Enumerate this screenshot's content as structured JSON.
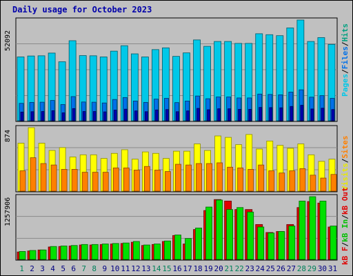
{
  "chart_data": {
    "type": "bar",
    "title": "Daily usage for October 2023",
    "days": [
      "1",
      "2",
      "3",
      "4",
      "5",
      "6",
      "7",
      "8",
      "9",
      "10",
      "11",
      "12",
      "13",
      "14",
      "15",
      "16",
      "17",
      "18",
      "19",
      "20",
      "21",
      "22",
      "23",
      "24",
      "25",
      "26",
      "27",
      "28",
      "29",
      "30",
      "31"
    ],
    "weekend_days": [
      "1",
      "7",
      "8",
      "14",
      "15",
      "21",
      "22",
      "28",
      "29"
    ],
    "grid": true,
    "panels": [
      {
        "id": "hits",
        "y_max_label": "52092",
        "y_max": 52092,
        "legend": [
          "Pages",
          "Files",
          "Hits"
        ],
        "series": [
          {
            "name": "Hits",
            "color": "#00c8e8",
            "values": [
              33000,
              33500,
              33600,
              35000,
              30500,
              41400,
              33700,
              33600,
              33000,
              36000,
              38800,
              34600,
              33000,
              36800,
              37700,
              33300,
              35100,
              41800,
              38500,
              41000,
              41000,
              40000,
              40000,
              45000,
              44500,
              44000,
              48000,
              52092,
              41000,
              43000,
              39500
            ]
          },
          {
            "name": "Files",
            "color": "#0070e8",
            "values": [
              9000,
              9500,
              9600,
              10500,
              8400,
              12500,
              9700,
              9600,
              9200,
              11000,
              12000,
              10200,
              9500,
              11200,
              11600,
              9400,
              10200,
              12800,
              11400,
              12300,
              12300,
              11800,
              11800,
              13800,
              13600,
              13400,
              14800,
              16000,
              12200,
              13000,
              11600
            ]
          },
          {
            "name": "Pages",
            "color": "#0000b0",
            "values": [
              4500,
              4700,
              4800,
              5200,
              4100,
              6300,
              4800,
              4800,
              4600,
              5500,
              6000,
              5100,
              4700,
              5600,
              5800,
              4700,
              5100,
              6400,
              5700,
              6200,
              6200,
              5900,
              5900,
              6900,
              6800,
              6700,
              7400,
              8000,
              6100,
              6500,
              5800
            ]
          }
        ]
      },
      {
        "id": "visits",
        "y_max_label": "874",
        "y_max": 874,
        "legend": [
          "Visits",
          "Sites"
        ],
        "series": [
          {
            "name": "Visits",
            "color": "#ffff00",
            "values": [
              660,
              874,
              660,
              560,
              600,
              470,
              500,
              500,
              450,
              520,
              570,
              440,
              540,
              520,
              450,
              550,
              550,
              650,
              560,
              760,
              740,
              640,
              780,
              580,
              690,
              630,
              590,
              650,
              500,
              410,
              440
            ]
          },
          {
            "name": "Sites",
            "color": "#ff8000",
            "values": [
              280,
              460,
              380,
              360,
              300,
              300,
              260,
              260,
              260,
              320,
              320,
              290,
              340,
              290,
              270,
              370,
              360,
              380,
              380,
              390,
              330,
              320,
              300,
              360,
              280,
              250,
              280,
              310,
              220,
              180,
              230
            ]
          }
        ]
      },
      {
        "id": "kbytes",
        "y_max_label": "1257906",
        "y_max": 1257906,
        "legend": [
          "kB F",
          "kB In",
          "kB Out"
        ],
        "series": [
          {
            "name": "kB F",
            "color": "#e00000",
            "values": [
              150000,
              170000,
              190000,
              250000,
              260000,
              270000,
              290000,
              290000,
              300000,
              310000,
              320000,
              345000,
              280000,
              300000,
              360000,
              480000,
              310000,
              600000,
              980000,
              1200000,
              1170000,
              1000000,
              1000000,
              700000,
              540000,
              560000,
              700000,
              1040000,
              1160000,
              1130000,
              650000
            ]
          },
          {
            "name": "kB In",
            "color": "#00e000",
            "values": [
              160000,
              180000,
              190000,
              260000,
              270000,
              280000,
              300000,
              300000,
              310000,
              320000,
              330000,
              360000,
              290000,
              310000,
              370000,
              490000,
              420000,
              630000,
              1050000,
              1190000,
              1000000,
              1040000,
              950000,
              650000,
              530000,
              560000,
              670000,
              1170000,
              1257906,
              1170000,
              670000
            ]
          }
        ]
      }
    ]
  }
}
